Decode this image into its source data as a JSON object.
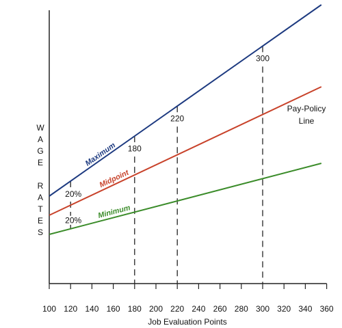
{
  "chart_data": {
    "type": "line",
    "xlabel": "Job Evaluation Points",
    "ylabel": "WAGE RATES",
    "x": [
      100,
      355
    ],
    "series": [
      {
        "name": "Maximum",
        "color": "#1d3a80",
        "values": [
          32,
          102
        ]
      },
      {
        "name": "Midpoint",
        "color": "#c8422a",
        "values": [
          25,
          72
        ]
      },
      {
        "name": "Minimum",
        "color": "#3b8c2a",
        "values": [
          18,
          44
        ]
      }
    ],
    "markers": [
      180,
      220,
      300
    ],
    "spread_x": 120,
    "annotations": [
      "20%",
      "20%",
      "Pay-Policy Line"
    ],
    "xlim": [
      100,
      360
    ],
    "ylim": [
      0,
      100
    ],
    "xticks": [
      100,
      120,
      140,
      160,
      180,
      200,
      220,
      240,
      260,
      280,
      300,
      320,
      340,
      360
    ]
  }
}
